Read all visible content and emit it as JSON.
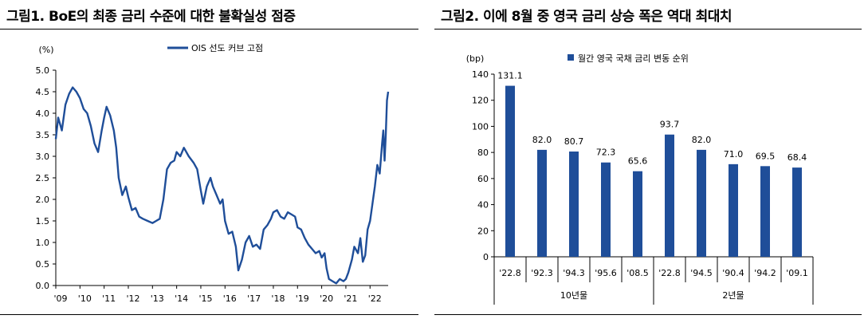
{
  "colors": {
    "series": "#1f4e99",
    "text": "#000000"
  },
  "chart_data": [
    {
      "type": "line",
      "title": "그림1. BoE의 최종 금리 수준에 대한 불확실성 점증",
      "unit_label": "(%)",
      "ylim": [
        0,
        5
      ],
      "y_ticks": [
        "0.0",
        "0.5",
        "1.0",
        "1.5",
        "2.0",
        "2.5",
        "3.0",
        "3.5",
        "4.0",
        "4.5",
        "5.0"
      ],
      "x_tick_labels": [
        "'09",
        "'10",
        "'11",
        "'12",
        "'13",
        "'14",
        "'15",
        "'16",
        "'17",
        "'18",
        "'19",
        "'20",
        "'21",
        "'22"
      ],
      "x_range": [
        2009.0,
        2022.75
      ],
      "legend": "top-center",
      "grid": false,
      "series": [
        {
          "name": "OIS 선도 커브 고점",
          "points": [
            [
              2009.0,
              3.4
            ],
            [
              2009.1,
              3.9
            ],
            [
              2009.25,
              3.6
            ],
            [
              2009.4,
              4.2
            ],
            [
              2009.55,
              4.45
            ],
            [
              2009.7,
              4.6
            ],
            [
              2009.85,
              4.5
            ],
            [
              2010.0,
              4.35
            ],
            [
              2010.15,
              4.1
            ],
            [
              2010.3,
              4.0
            ],
            [
              2010.45,
              3.7
            ],
            [
              2010.6,
              3.3
            ],
            [
              2010.75,
              3.1
            ],
            [
              2010.9,
              3.6
            ],
            [
              2011.0,
              3.9
            ],
            [
              2011.1,
              4.15
            ],
            [
              2011.25,
              3.95
            ],
            [
              2011.4,
              3.6
            ],
            [
              2011.5,
              3.2
            ],
            [
              2011.6,
              2.5
            ],
            [
              2011.75,
              2.1
            ],
            [
              2011.9,
              2.3
            ],
            [
              2012.0,
              2.05
            ],
            [
              2012.15,
              1.75
            ],
            [
              2012.3,
              1.8
            ],
            [
              2012.45,
              1.6
            ],
            [
              2012.6,
              1.55
            ],
            [
              2012.8,
              1.5
            ],
            [
              2013.0,
              1.45
            ],
            [
              2013.15,
              1.5
            ],
            [
              2013.3,
              1.55
            ],
            [
              2013.45,
              2.0
            ],
            [
              2013.6,
              2.7
            ],
            [
              2013.75,
              2.85
            ],
            [
              2013.9,
              2.9
            ],
            [
              2014.0,
              3.1
            ],
            [
              2014.15,
              3.0
            ],
            [
              2014.3,
              3.2
            ],
            [
              2014.5,
              3.0
            ],
            [
              2014.7,
              2.85
            ],
            [
              2014.85,
              2.7
            ],
            [
              2015.0,
              2.2
            ],
            [
              2015.1,
              1.9
            ],
            [
              2015.25,
              2.3
            ],
            [
              2015.4,
              2.5
            ],
            [
              2015.5,
              2.3
            ],
            [
              2015.65,
              2.1
            ],
            [
              2015.8,
              1.9
            ],
            [
              2015.9,
              2.0
            ],
            [
              2016.0,
              1.5
            ],
            [
              2016.15,
              1.2
            ],
            [
              2016.3,
              1.25
            ],
            [
              2016.45,
              0.9
            ],
            [
              2016.55,
              0.35
            ],
            [
              2016.7,
              0.6
            ],
            [
              2016.85,
              1.0
            ],
            [
              2017.0,
              1.15
            ],
            [
              2017.15,
              0.9
            ],
            [
              2017.3,
              0.95
            ],
            [
              2017.45,
              0.85
            ],
            [
              2017.6,
              1.3
            ],
            [
              2017.75,
              1.4
            ],
            [
              2017.9,
              1.55
            ],
            [
              2018.0,
              1.7
            ],
            [
              2018.15,
              1.75
            ],
            [
              2018.3,
              1.6
            ],
            [
              2018.45,
              1.55
            ],
            [
              2018.6,
              1.7
            ],
            [
              2018.75,
              1.65
            ],
            [
              2018.9,
              1.6
            ],
            [
              2019.0,
              1.35
            ],
            [
              2019.15,
              1.3
            ],
            [
              2019.3,
              1.1
            ],
            [
              2019.45,
              0.95
            ],
            [
              2019.6,
              0.85
            ],
            [
              2019.75,
              0.75
            ],
            [
              2019.9,
              0.8
            ],
            [
              2020.0,
              0.65
            ],
            [
              2020.12,
              0.75
            ],
            [
              2020.2,
              0.4
            ],
            [
              2020.3,
              0.15
            ],
            [
              2020.45,
              0.1
            ],
            [
              2020.6,
              0.05
            ],
            [
              2020.75,
              0.15
            ],
            [
              2020.9,
              0.1
            ],
            [
              2021.0,
              0.15
            ],
            [
              2021.1,
              0.3
            ],
            [
              2021.25,
              0.6
            ],
            [
              2021.35,
              0.9
            ],
            [
              2021.5,
              0.75
            ],
            [
              2021.6,
              1.1
            ],
            [
              2021.7,
              0.55
            ],
            [
              2021.8,
              0.7
            ],
            [
              2021.9,
              1.3
            ],
            [
              2022.0,
              1.5
            ],
            [
              2022.1,
              1.9
            ],
            [
              2022.2,
              2.3
            ],
            [
              2022.3,
              2.8
            ],
            [
              2022.4,
              2.6
            ],
            [
              2022.5,
              3.3
            ],
            [
              2022.55,
              3.6
            ],
            [
              2022.6,
              2.9
            ],
            [
              2022.65,
              3.5
            ],
            [
              2022.7,
              4.3
            ],
            [
              2022.75,
              4.5
            ]
          ]
        }
      ]
    },
    {
      "type": "bar",
      "title": "그림2. 이에 8월 중 영국 금리 상승 폭은 역대 최대치",
      "unit_label": "(bp)",
      "ylim": [
        0,
        140
      ],
      "y_ticks": [
        "0",
        "20",
        "40",
        "60",
        "80",
        "100",
        "120",
        "140"
      ],
      "legend": "top-center",
      "grid": false,
      "categories": [
        "'22.8",
        "'92.3",
        "'94.3",
        "'95.6",
        "'08.5",
        "'22.8",
        "'94.5",
        "'90.4",
        "'94.2",
        "'09.1"
      ],
      "groups": [
        {
          "label": "10년물",
          "start": 0,
          "end": 5
        },
        {
          "label": "2년물",
          "start": 5,
          "end": 10
        }
      ],
      "series": [
        {
          "name": "월간 영국 국채 금리 변동 순위",
          "values": [
            131.1,
            82.0,
            80.7,
            72.3,
            65.6,
            93.7,
            82.0,
            71.0,
            69.5,
            68.4
          ],
          "value_labels": [
            "131.1",
            "82.0",
            "80.7",
            "72.3",
            "65.6",
            "93.7",
            "82.0",
            "71.0",
            "69.5",
            "68.4"
          ]
        }
      ]
    }
  ]
}
